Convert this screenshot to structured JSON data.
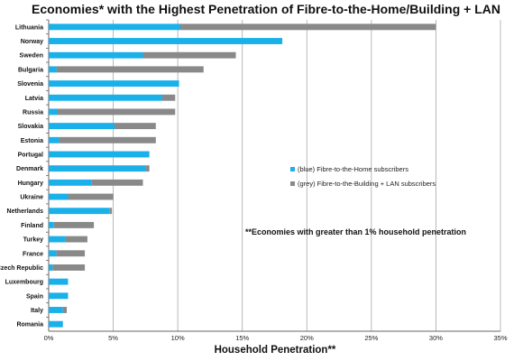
{
  "chart_data": {
    "type": "bar",
    "orientation": "horizontal",
    "stacked": true,
    "title": "Economies* with the Highest Penetration of Fibre-to-the-Home/Building + LAN",
    "xlabel": "Household Penetration**",
    "ylabel": "",
    "xlim": [
      0,
      35
    ],
    "xticks": [
      0,
      5,
      10,
      15,
      20,
      25,
      30,
      35
    ],
    "xtick_labels": [
      "0%",
      "5%",
      "10%",
      "15%",
      "20%",
      "25%",
      "30%",
      "35%"
    ],
    "grid": true,
    "categories": [
      "Lithuania",
      "Norway",
      "Sweden",
      "Bulgaria",
      "Slovenia",
      "Latvia",
      "Russia",
      "Slovakia",
      "Estonia",
      "Portugal",
      "Denmark",
      "Hungary",
      "Ukraine",
      "Netherlands",
      "Finland",
      "Turkey",
      "France",
      "Czech Republic",
      "Luxembourg",
      "Spain",
      "Italy",
      "Romania"
    ],
    "series": [
      {
        "name": "(blue) Fibre-to-the-Home subscribers",
        "color": "#1ab0ea",
        "values": [
          10.2,
          18.1,
          7.3,
          0.6,
          10.1,
          8.8,
          0.7,
          5.1,
          0.8,
          7.8,
          7.5,
          3.3,
          1.5,
          4.7,
          0.4,
          1.3,
          0.6,
          0.3,
          1.5,
          1.5,
          1.1,
          1.1
        ]
      },
      {
        "name": "(grey) Fibre-to-the-Building + LAN subscribers",
        "color": "#898989",
        "values": [
          19.8,
          0.0,
          7.2,
          11.4,
          0.0,
          1.0,
          9.1,
          3.2,
          7.5,
          0.0,
          0.3,
          4.0,
          3.5,
          0.2,
          3.1,
          1.7,
          2.2,
          2.5,
          0.0,
          0.0,
          0.3,
          0.0
        ]
      }
    ],
    "legend_position": "center-right",
    "annotation": "**Economies with greater than 1% household penetration"
  }
}
